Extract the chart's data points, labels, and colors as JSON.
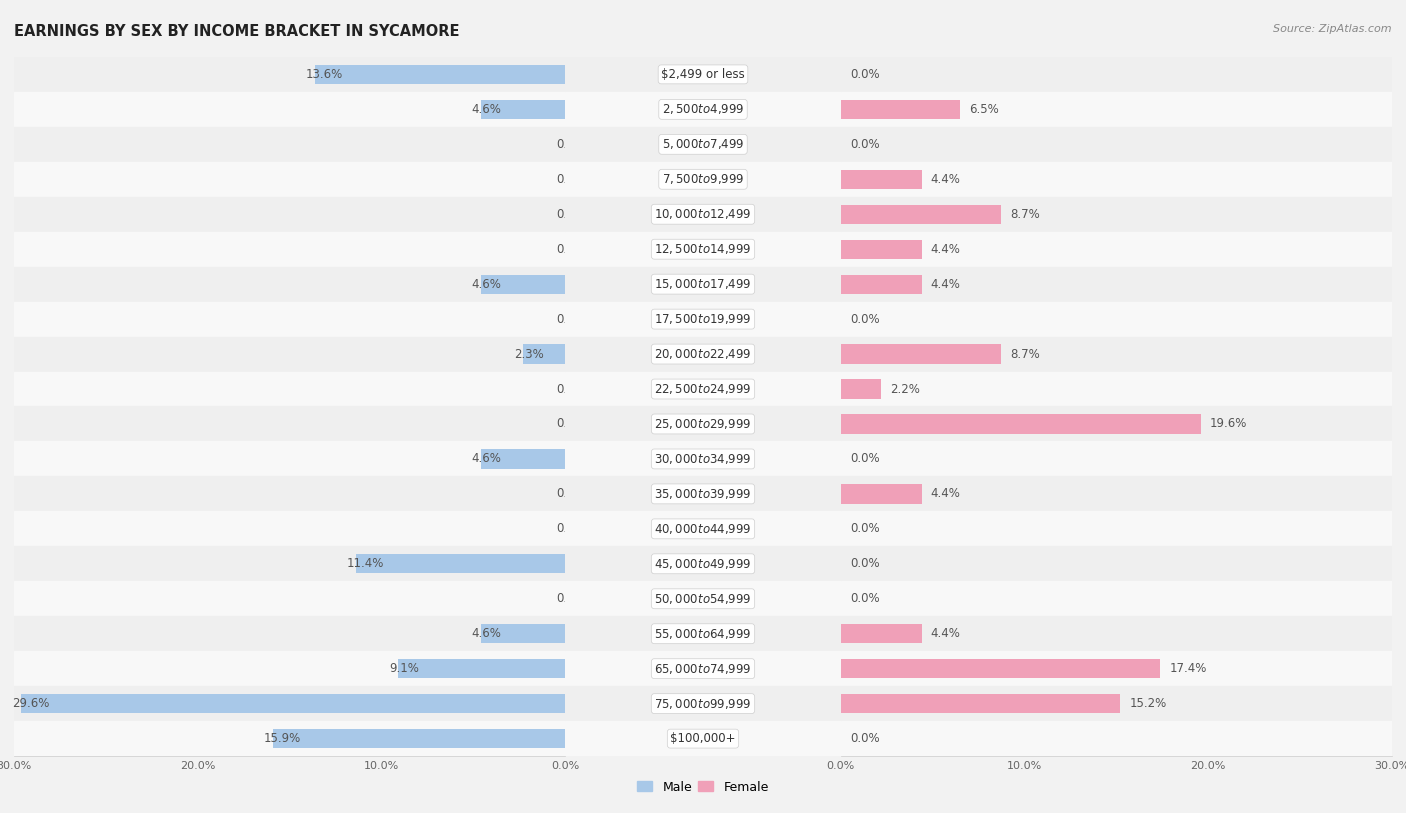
{
  "title": "EARNINGS BY SEX BY INCOME BRACKET IN SYCAMORE",
  "source": "Source: ZipAtlas.com",
  "categories": [
    "$2,499 or less",
    "$2,500 to $4,999",
    "$5,000 to $7,499",
    "$7,500 to $9,999",
    "$10,000 to $12,499",
    "$12,500 to $14,999",
    "$15,000 to $17,499",
    "$17,500 to $19,999",
    "$20,000 to $22,499",
    "$22,500 to $24,999",
    "$25,000 to $29,999",
    "$30,000 to $34,999",
    "$35,000 to $39,999",
    "$40,000 to $44,999",
    "$45,000 to $49,999",
    "$50,000 to $54,999",
    "$55,000 to $64,999",
    "$65,000 to $74,999",
    "$75,000 to $99,999",
    "$100,000+"
  ],
  "male_values": [
    13.6,
    4.6,
    0.0,
    0.0,
    0.0,
    0.0,
    4.6,
    0.0,
    2.3,
    0.0,
    0.0,
    4.6,
    0.0,
    0.0,
    11.4,
    0.0,
    4.6,
    9.1,
    29.6,
    15.9
  ],
  "female_values": [
    0.0,
    6.5,
    0.0,
    4.4,
    8.7,
    4.4,
    4.4,
    0.0,
    8.7,
    2.2,
    19.6,
    0.0,
    4.4,
    0.0,
    0.0,
    0.0,
    4.4,
    17.4,
    15.2,
    0.0
  ],
  "male_color": "#a8c8e8",
  "female_color": "#f0a0b8",
  "row_color_even": "#efefef",
  "row_color_odd": "#f8f8f8",
  "axis_limit": 30.0,
  "label_fontsize": 8.5,
  "title_fontsize": 10.5,
  "category_fontsize": 8.5,
  "bar_height": 0.55
}
